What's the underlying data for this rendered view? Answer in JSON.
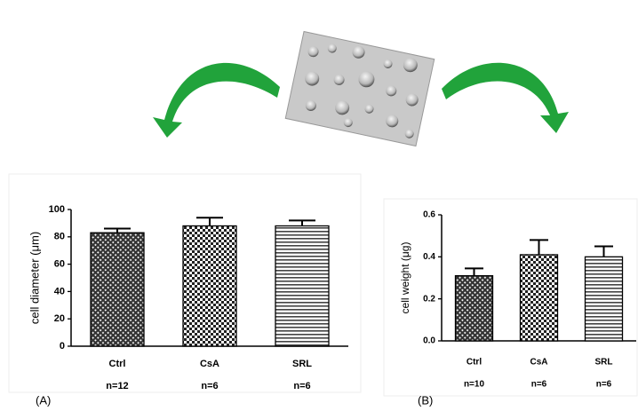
{
  "chart_data": [
    {
      "type": "bar",
      "panel_label": "(A)",
      "y_label": "cell diameter (μm)",
      "categories": [
        "Ctrl",
        "CsA",
        "SRL"
      ],
      "n_labels": [
        "n=12",
        "n=6",
        "n=6"
      ],
      "values": [
        83,
        88,
        88
      ],
      "errors": [
        3,
        6,
        4
      ],
      "ylim": [
        0,
        100
      ],
      "yticks": [
        0,
        20,
        40,
        60,
        80,
        100
      ]
    },
    {
      "type": "bar",
      "panel_label": "(B)",
      "y_label": "cell weight (μg)",
      "categories": [
        "Ctrl",
        "CsA",
        "SRL"
      ],
      "n_labels": [
        "n=10",
        "n=6",
        "n=6"
      ],
      "values": [
        0.31,
        0.41,
        0.4
      ],
      "errors": [
        0.035,
        0.07,
        0.05
      ],
      "ylim": [
        0,
        0.6
      ],
      "yticks": [
        {
          "value": 0,
          "label": "0.0"
        },
        0.2,
        0.4,
        0.6
      ]
    }
  ]
}
